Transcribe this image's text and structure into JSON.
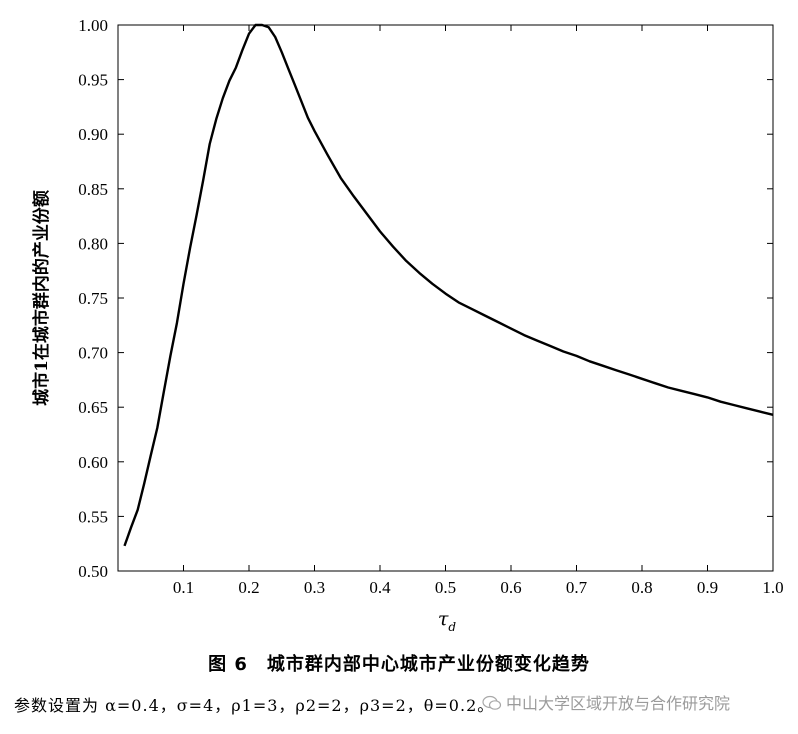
{
  "chart_data": {
    "type": "line",
    "xlabel": "τ",
    "xlabel_sub": "d",
    "ylabel": "城市1在城市群内的产业份额",
    "xlim": [
      0,
      1.0
    ],
    "ylim": [
      0.5,
      1.0
    ],
    "x_ticks": [
      "0.1",
      "0.2",
      "0.3",
      "0.4",
      "0.5",
      "0.6",
      "0.7",
      "0.8",
      "0.9",
      "1.0"
    ],
    "x_tick_values": [
      0.1,
      0.2,
      0.3,
      0.4,
      0.5,
      0.6,
      0.7,
      0.8,
      0.9,
      1.0
    ],
    "y_ticks": [
      "0.50",
      "0.55",
      "0.60",
      "0.65",
      "0.70",
      "0.75",
      "0.80",
      "0.85",
      "0.90",
      "0.95",
      "1.00"
    ],
    "y_tick_values": [
      0.5,
      0.55,
      0.6,
      0.65,
      0.7,
      0.75,
      0.8,
      0.85,
      0.9,
      0.95,
      1.0
    ],
    "grid": false,
    "series": [
      {
        "x": [
          0.01,
          0.02,
          0.03,
          0.04,
          0.05,
          0.06,
          0.07,
          0.08,
          0.09,
          0.1,
          0.11,
          0.12,
          0.13,
          0.14,
          0.15,
          0.16,
          0.17,
          0.18,
          0.19,
          0.2,
          0.21,
          0.22,
          0.23,
          0.24,
          0.25,
          0.26,
          0.27,
          0.28,
          0.29,
          0.3,
          0.32,
          0.34,
          0.36,
          0.38,
          0.4,
          0.42,
          0.44,
          0.46,
          0.48,
          0.5,
          0.52,
          0.54,
          0.56,
          0.58,
          0.6,
          0.62,
          0.64,
          0.66,
          0.68,
          0.7,
          0.72,
          0.74,
          0.76,
          0.78,
          0.8,
          0.82,
          0.84,
          0.86,
          0.88,
          0.9,
          0.92,
          0.94,
          0.96,
          0.98,
          1.0
        ],
        "values": [
          0.523,
          0.54,
          0.556,
          0.58,
          0.606,
          0.631,
          0.664,
          0.697,
          0.727,
          0.763,
          0.796,
          0.826,
          0.858,
          0.891,
          0.914,
          0.933,
          0.949,
          0.961,
          0.977,
          0.992,
          1.0,
          1.0,
          0.998,
          0.989,
          0.975,
          0.96,
          0.945,
          0.93,
          0.915,
          0.903,
          0.881,
          0.86,
          0.843,
          0.827,
          0.811,
          0.797,
          0.784,
          0.773,
          0.763,
          0.754,
          0.746,
          0.74,
          0.734,
          0.728,
          0.722,
          0.716,
          0.711,
          0.706,
          0.701,
          0.697,
          0.692,
          0.688,
          0.684,
          0.68,
          0.676,
          0.672,
          0.668,
          0.665,
          0.662,
          0.659,
          0.655,
          0.652,
          0.649,
          0.646,
          0.643
        ]
      }
    ]
  },
  "caption": "图 6　城市群内部中心城市产业份额变化趋势",
  "params": "参数设置为 α=0.4，σ=4，ρ1=3，ρ2=2，ρ3=2，θ=0.2。",
  "watermark": "中山大学区域开放与合作研究院",
  "watermark_icon": "wechat-icon"
}
